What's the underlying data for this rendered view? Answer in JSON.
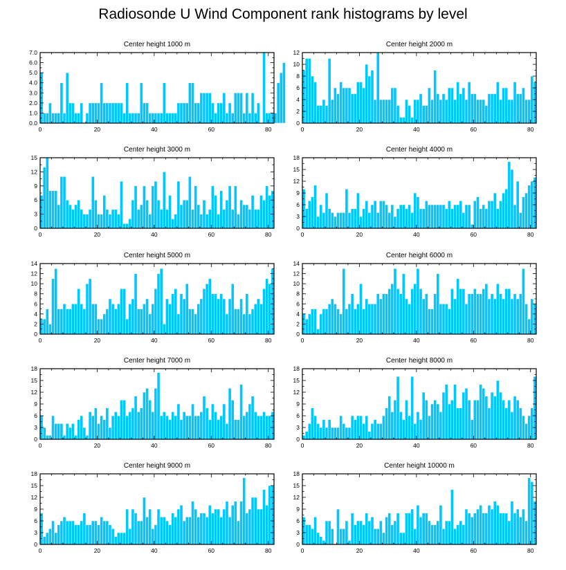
{
  "title": "Radiosonde U Wind Component rank histograms by level",
  "colors": {
    "bar": "#00c8ff",
    "frame": "#000000",
    "background": "#ffffff"
  },
  "chart_data": [
    {
      "type": "bar",
      "title": "Center height 1000 m",
      "xlim": [
        0,
        82
      ],
      "xticks": [
        0,
        20,
        40,
        60,
        80
      ],
      "ylim": [
        0,
        7
      ],
      "yticks": [
        "0.0",
        "1.0",
        "2.0",
        "3.0",
        "4.0",
        "5.0",
        "6.0",
        "7.0"
      ],
      "values": [
        5,
        1,
        1,
        2,
        1,
        1,
        1,
        4,
        1,
        5,
        2,
        2,
        1,
        1,
        2,
        0,
        1,
        2,
        2,
        2,
        2,
        4,
        2,
        2,
        2,
        2,
        2,
        2,
        2,
        1,
        4,
        1,
        1,
        1,
        1,
        4,
        2,
        2,
        1,
        1,
        1,
        1,
        1,
        4,
        1,
        1,
        1,
        1,
        2,
        2,
        2,
        2,
        4,
        4,
        2,
        2,
        3,
        3,
        3,
        3,
        2,
        1,
        2,
        2,
        3,
        1,
        2,
        1,
        3,
        3,
        3,
        1,
        3,
        1,
        3,
        1,
        2,
        0,
        7,
        1,
        1,
        1,
        1,
        4,
        5,
        6
      ]
    },
    {
      "type": "bar",
      "title": "Center height 2000 m",
      "xlim": [
        0,
        82
      ],
      "xticks": [
        0,
        20,
        40,
        60,
        80
      ],
      "ylim": [
        0,
        12
      ],
      "yticks": [
        "0",
        "2",
        "4",
        "6",
        "8",
        "10",
        "12"
      ],
      "values": [
        9,
        11,
        11,
        8,
        7,
        3,
        3,
        4,
        3,
        11,
        4,
        6,
        5,
        7,
        6,
        6,
        6,
        5,
        5,
        7,
        7,
        6,
        10,
        8,
        9,
        4,
        12,
        4,
        4,
        4,
        4,
        6,
        6,
        3,
        1,
        1,
        4,
        3,
        1,
        4,
        4,
        5,
        3,
        3,
        6,
        4,
        9,
        5,
        4,
        5,
        4,
        6,
        6,
        4,
        7,
        5,
        6,
        4,
        7,
        5,
        5,
        4,
        4,
        4,
        3,
        5,
        5,
        5,
        7,
        4,
        6,
        6,
        4,
        4,
        7,
        5,
        5,
        6,
        4,
        4,
        8,
        7
      ]
    },
    {
      "type": "bar",
      "title": "Center height 3000 m",
      "xlim": [
        0,
        82
      ],
      "xticks": [
        0,
        20,
        40,
        60,
        80
      ],
      "ylim": [
        0,
        15
      ],
      "yticks": [
        "0",
        "3",
        "6",
        "9",
        "12",
        "15"
      ],
      "values": [
        7,
        13,
        15,
        8,
        8,
        8,
        5,
        11,
        11,
        6,
        5,
        4,
        5,
        6,
        4,
        3,
        3,
        4,
        11,
        6,
        3,
        3,
        7,
        4,
        3,
        4,
        4,
        3,
        10,
        1,
        1,
        2,
        6,
        9,
        4,
        5,
        9,
        6,
        3,
        9,
        10,
        6,
        4,
        12,
        4,
        7,
        2,
        3,
        10,
        5,
        6,
        6,
        11,
        4,
        9,
        5,
        3,
        6,
        3,
        4,
        9,
        7,
        3,
        8,
        4,
        6,
        9,
        4,
        9,
        3,
        6,
        5,
        5,
        4,
        7,
        4,
        4,
        7,
        6,
        9,
        7,
        8
      ]
    },
    {
      "type": "bar",
      "title": "Center height 4000 m",
      "xlim": [
        0,
        82
      ],
      "xticks": [
        0,
        20,
        40,
        60,
        80
      ],
      "ylim": [
        0,
        18
      ],
      "yticks": [
        "0",
        "3",
        "6",
        "9",
        "12",
        "15",
        "18"
      ],
      "values": [
        10,
        5,
        7,
        8,
        11,
        3,
        6,
        4,
        9,
        5,
        4,
        3,
        4,
        4,
        4,
        10,
        4,
        5,
        5,
        9,
        3,
        5,
        7,
        4,
        6,
        7,
        4,
        7,
        7,
        6,
        4,
        6,
        3,
        5,
        6,
        6,
        5,
        6,
        4,
        9,
        8,
        5,
        5,
        7,
        6,
        6,
        6,
        6,
        6,
        6,
        5,
        7,
        5,
        6,
        6,
        7,
        4,
        6,
        6,
        1,
        7,
        8,
        5,
        6,
        5,
        7,
        7,
        9,
        5,
        7,
        9,
        10,
        17,
        15,
        6,
        12,
        4,
        8,
        9,
        11,
        12,
        13
      ]
    },
    {
      "type": "bar",
      "title": "Center height 5000 m",
      "xlim": [
        0,
        82
      ],
      "xticks": [
        0,
        20,
        40,
        60,
        80
      ],
      "ylim": [
        0,
        14
      ],
      "yticks": [
        "0",
        "2",
        "4",
        "6",
        "8",
        "10",
        "12",
        "14"
      ],
      "values": [
        3,
        3,
        5,
        2,
        11,
        13,
        5,
        5,
        6,
        5,
        5,
        6,
        6,
        9,
        6,
        5,
        10,
        11,
        6,
        6,
        3,
        3,
        4,
        5,
        7,
        6,
        5,
        6,
        9,
        9,
        3,
        6,
        7,
        12,
        5,
        5,
        6,
        7,
        4,
        6,
        9,
        12,
        13,
        2,
        7,
        6,
        8,
        9,
        4,
        8,
        7,
        10,
        5,
        5,
        4,
        6,
        7,
        9,
        10,
        11,
        8,
        8,
        7,
        8,
        7,
        4,
        7,
        10,
        5,
        5,
        7,
        4,
        8,
        4,
        5,
        6,
        7,
        6,
        9,
        11,
        10,
        13
      ]
    },
    {
      "type": "bar",
      "title": "Center height 6000 m",
      "xlim": [
        0,
        82
      ],
      "xticks": [
        0,
        20,
        40,
        60,
        80
      ],
      "ylim": [
        0,
        14
      ],
      "yticks": [
        "0",
        "2",
        "4",
        "6",
        "8",
        "10",
        "12",
        "14"
      ],
      "values": [
        4,
        3,
        4,
        5,
        5,
        1,
        4,
        5,
        5,
        6,
        7,
        6,
        5,
        4,
        13,
        5,
        6,
        8,
        5,
        6,
        10,
        5,
        7,
        6,
        6,
        6,
        8,
        7,
        8,
        8,
        9,
        10,
        13,
        9,
        8,
        12,
        7,
        6,
        9,
        10,
        13,
        9,
        7,
        8,
        5,
        5,
        8,
        12,
        6,
        6,
        6,
        5,
        9,
        7,
        11,
        9,
        9,
        6,
        8,
        8,
        9,
        8,
        8,
        9,
        10,
        7,
        8,
        7,
        10,
        8,
        7,
        9,
        9,
        7,
        8,
        7,
        8,
        13,
        6,
        3,
        7,
        6
      ]
    },
    {
      "type": "bar",
      "title": "Center height 7000 m",
      "xlim": [
        0,
        82
      ],
      "xticks": [
        0,
        20,
        40,
        60,
        80
      ],
      "ylim": [
        0,
        18
      ],
      "yticks": [
        "0",
        "3",
        "6",
        "9",
        "12",
        "15",
        "18"
      ],
      "values": [
        6,
        3,
        1,
        1,
        6,
        4,
        4,
        4,
        1,
        4,
        3,
        4,
        1,
        5,
        6,
        3,
        1,
        7,
        6,
        8,
        4,
        6,
        5,
        8,
        3,
        6,
        7,
        6,
        10,
        10,
        6,
        7,
        8,
        11,
        7,
        8,
        12,
        13,
        10,
        7,
        13,
        17,
        6,
        7,
        6,
        5,
        7,
        6,
        9,
        5,
        7,
        6,
        6,
        9,
        6,
        6,
        7,
        11,
        8,
        5,
        9,
        7,
        5,
        6,
        9,
        4,
        13,
        10,
        5,
        5,
        14,
        6,
        7,
        9,
        11,
        7,
        6,
        6,
        7,
        6,
        6,
        7
      ]
    },
    {
      "type": "bar",
      "title": "Center height 8000 m",
      "xlim": [
        0,
        82
      ],
      "xticks": [
        0,
        20,
        40,
        60,
        80
      ],
      "ylim": [
        0,
        18
      ],
      "yticks": [
        "0",
        "3",
        "6",
        "9",
        "12",
        "15",
        "18"
      ],
      "values": [
        1,
        2,
        4,
        8,
        6,
        4,
        3,
        5,
        3,
        5,
        3,
        3,
        3,
        6,
        4,
        3,
        3,
        6,
        5,
        6,
        6,
        4,
        6,
        2,
        4,
        5,
        4,
        4,
        6,
        8,
        11,
        7,
        10,
        16,
        7,
        5,
        10,
        6,
        16,
        4,
        7,
        5,
        12,
        10,
        6,
        9,
        10,
        9,
        7,
        12,
        14,
        9,
        10,
        14,
        8,
        8,
        12,
        13,
        10,
        5,
        10,
        10,
        14,
        13,
        11,
        8,
        12,
        11,
        15,
        12,
        10,
        8,
        10,
        7,
        11,
        10,
        8,
        6,
        4,
        6,
        8,
        16
      ]
    },
    {
      "type": "bar",
      "title": "Center height 9000 m",
      "xlim": [
        0,
        82
      ],
      "xticks": [
        0,
        20,
        40,
        60,
        80
      ],
      "ylim": [
        0,
        18
      ],
      "yticks": [
        "0",
        "3",
        "6",
        "9",
        "12",
        "15",
        "18"
      ],
      "values": [
        8,
        2,
        3,
        4,
        6,
        3,
        5,
        6,
        7,
        6,
        6,
        6,
        5,
        5,
        6,
        8,
        5,
        5,
        6,
        6,
        5,
        7,
        6,
        6,
        5,
        4,
        2,
        3,
        3,
        3,
        9,
        4,
        9,
        8,
        6,
        6,
        12,
        7,
        9,
        4,
        5,
        9,
        7,
        7,
        6,
        5,
        8,
        7,
        9,
        10,
        6,
        7,
        7,
        11,
        9,
        7,
        8,
        8,
        7,
        10,
        8,
        9,
        9,
        7,
        9,
        11,
        7,
        10,
        11,
        6,
        11,
        17,
        8,
        9,
        12,
        12,
        9,
        9,
        14,
        10,
        15,
        15
      ]
    },
    {
      "type": "bar",
      "title": "Center height 10000 m",
      "xlim": [
        0,
        82
      ],
      "xticks": [
        0,
        20,
        40,
        60,
        80
      ],
      "ylim": [
        0,
        18
      ],
      "yticks": [
        "0",
        "3",
        "6",
        "9",
        "12",
        "15",
        "18"
      ],
      "values": [
        7,
        5,
        5,
        4,
        7,
        3,
        2,
        1,
        6,
        6,
        4,
        0,
        9,
        4,
        4,
        6,
        1,
        8,
        5,
        6,
        6,
        5,
        8,
        6,
        7,
        4,
        4,
        6,
        3,
        7,
        8,
        5,
        6,
        8,
        3,
        3,
        8,
        8,
        9,
        4,
        10,
        7,
        8,
        8,
        6,
        5,
        5,
        6,
        10,
        4,
        6,
        6,
        14,
        4,
        5,
        6,
        5,
        9,
        8,
        7,
        8,
        9,
        10,
        8,
        8,
        10,
        9,
        11,
        10,
        8,
        8,
        8,
        6,
        11,
        8,
        9,
        7,
        9,
        6,
        17,
        16,
        11
      ]
    }
  ]
}
